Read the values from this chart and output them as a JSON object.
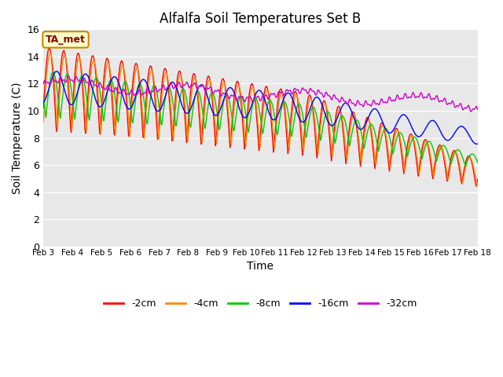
{
  "title": "Alfalfa Soil Temperatures Set B",
  "xlabel": "Time",
  "ylabel": "Soil Temperature (C)",
  "ylim": [
    0,
    16
  ],
  "yticks": [
    0,
    2,
    4,
    6,
    8,
    10,
    12,
    14,
    16
  ],
  "xtick_labels": [
    "Feb 3",
    "Feb 4",
    "Feb 5",
    "Feb 6",
    "Feb 7",
    "Feb 8",
    "Feb 9",
    "Feb 10",
    "Feb 11",
    "Feb 12",
    "Feb 13",
    "Feb 14",
    "Feb 15",
    "Feb 16",
    "Feb 17",
    "Feb 18"
  ],
  "annotation_label": "TA_met",
  "annotation_color_bg": "#ffffcc",
  "annotation_color_border": "#cc8800",
  "annotation_text_color": "#8b0000",
  "series_colors": {
    "-2cm": "#ff0000",
    "-4cm": "#ff8800",
    "-8cm": "#00cc00",
    "-16cm": "#0000ff",
    "-32cm": "#cc00cc"
  },
  "legend_labels": [
    "-2cm",
    "-4cm",
    "-8cm",
    "-16cm",
    "-32cm"
  ],
  "bg_color": "#e8e8e8",
  "n_points": 720
}
